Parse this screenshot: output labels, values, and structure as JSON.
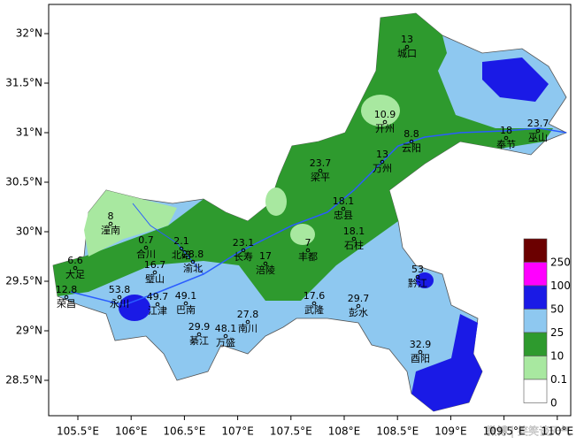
{
  "axes": {
    "lat_labels": [
      "32°N",
      "31.5°N",
      "31°N",
      "30.5°N",
      "30°N",
      "29.5°N",
      "29°N",
      "28.5°N"
    ],
    "lon_labels": [
      "105.5°E",
      "106°E",
      "106.5°E",
      "107°E",
      "107.5°E",
      "108°E",
      "108.5°E",
      "109°E",
      "109.5°E",
      "110°E"
    ]
  },
  "legend": {
    "labels": [
      "250",
      "100",
      "50",
      "25",
      "10",
      "0.1",
      "0"
    ],
    "colors": [
      "#6b0000",
      "#ff00ff",
      "#1a1ae6",
      "#8ec8f0",
      "#2e9a2e",
      "#a8e8a0",
      "#ffffff"
    ]
  },
  "stations": [
    {
      "name": "城口",
      "value": 13
    },
    {
      "name": "开州",
      "value": 10.9
    },
    {
      "name": "云阳",
      "value": 8.8
    },
    {
      "name": "万州",
      "value": 13
    },
    {
      "name": "奉节",
      "value": 18
    },
    {
      "name": "巫山",
      "value": 23.7
    },
    {
      "name": "梁平",
      "value": 23.7
    },
    {
      "name": "忠县",
      "value": 18.1
    },
    {
      "name": "石柱",
      "value": 18.1
    },
    {
      "name": "丰都",
      "value": 7
    },
    {
      "name": "长寿",
      "value": 23.1
    },
    {
      "name": "涪陵",
      "value": 17
    },
    {
      "name": "潼南",
      "value": 8
    },
    {
      "name": "合川",
      "value": 0.7
    },
    {
      "name": "北碚",
      "value": 2.1
    },
    {
      "name": "渝北",
      "value": 28.8
    },
    {
      "name": "大足",
      "value": 6.6
    },
    {
      "name": "璧山",
      "value": 16.7
    },
    {
      "name": "荣昌",
      "value": 12.8
    },
    {
      "name": "永川",
      "value": 53.8
    },
    {
      "name": "江津",
      "value": 49.7
    },
    {
      "name": "巴南",
      "value": 49.1
    },
    {
      "name": "綦江",
      "value": 29.9
    },
    {
      "name": "万盛",
      "value": 48.1
    },
    {
      "name": "南川",
      "value": 27.8
    },
    {
      "name": "武隆",
      "value": 17.6
    },
    {
      "name": "彭水",
      "value": 29.7
    },
    {
      "name": "黔江",
      "value": 53
    },
    {
      "name": "酉阳",
      "value": 32.9
    }
  ],
  "watermark": "微博 | 笑笑谈天气"
}
